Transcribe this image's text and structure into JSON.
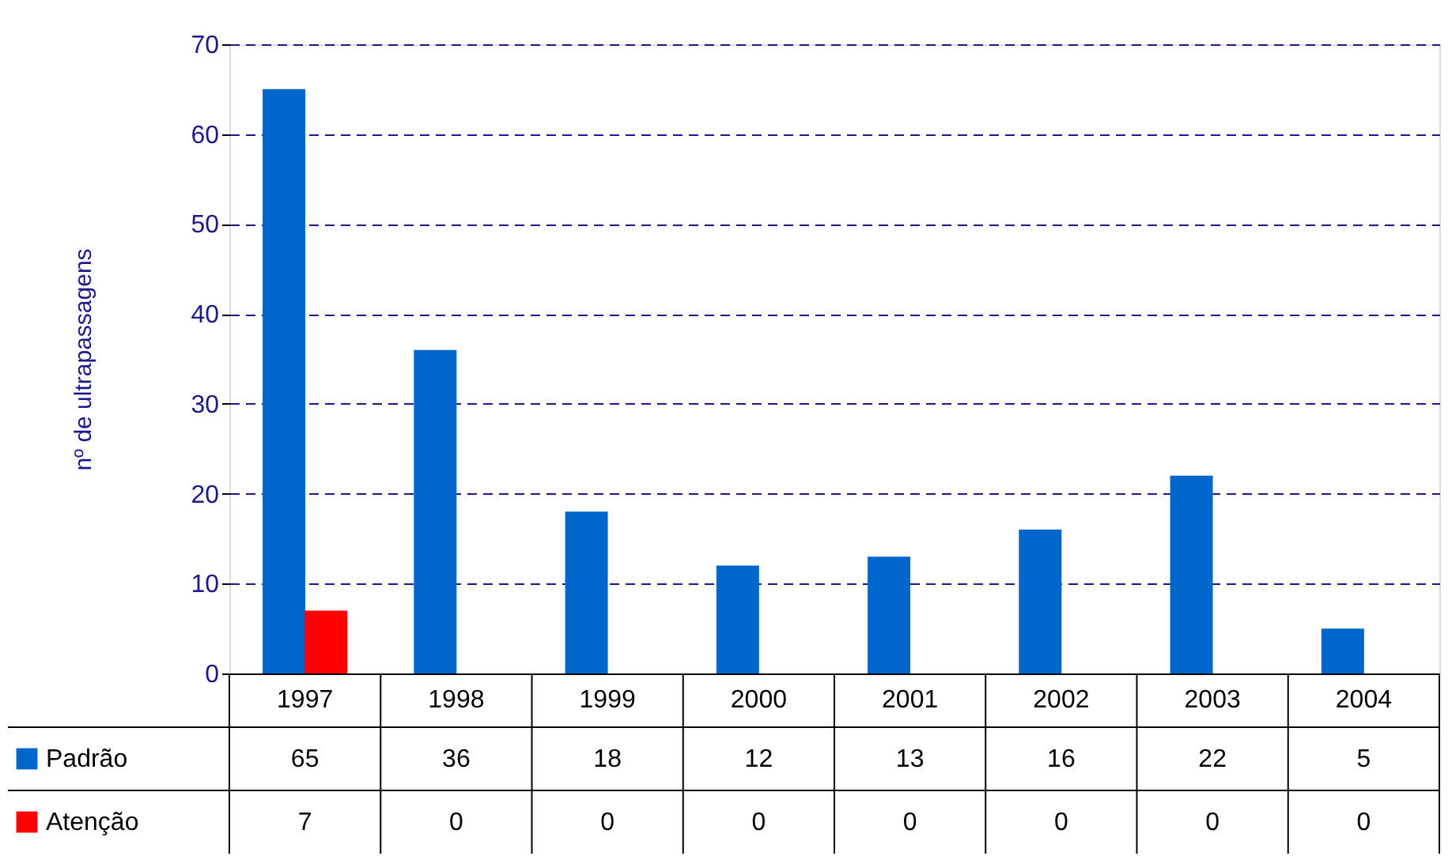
{
  "chart_data": {
    "type": "bar",
    "ylabel": "nº de ultrapassagens",
    "categories": [
      "1997",
      "1998",
      "1999",
      "2000",
      "2001",
      "2002",
      "2003",
      "2004"
    ],
    "series": [
      {
        "name": "Padrão",
        "color": "#0066cc",
        "values": [
          65,
          36,
          18,
          12,
          13,
          16,
          22,
          5
        ]
      },
      {
        "name": "Atenção",
        "color": "#ff0000",
        "values": [
          7,
          0,
          0,
          0,
          0,
          0,
          0,
          0
        ]
      }
    ],
    "ylim": [
      0,
      70
    ],
    "yticks": [
      0,
      10,
      20,
      30,
      40,
      50,
      60,
      70
    ],
    "grid": "y",
    "data_labels": true,
    "legend": "bottom"
  }
}
